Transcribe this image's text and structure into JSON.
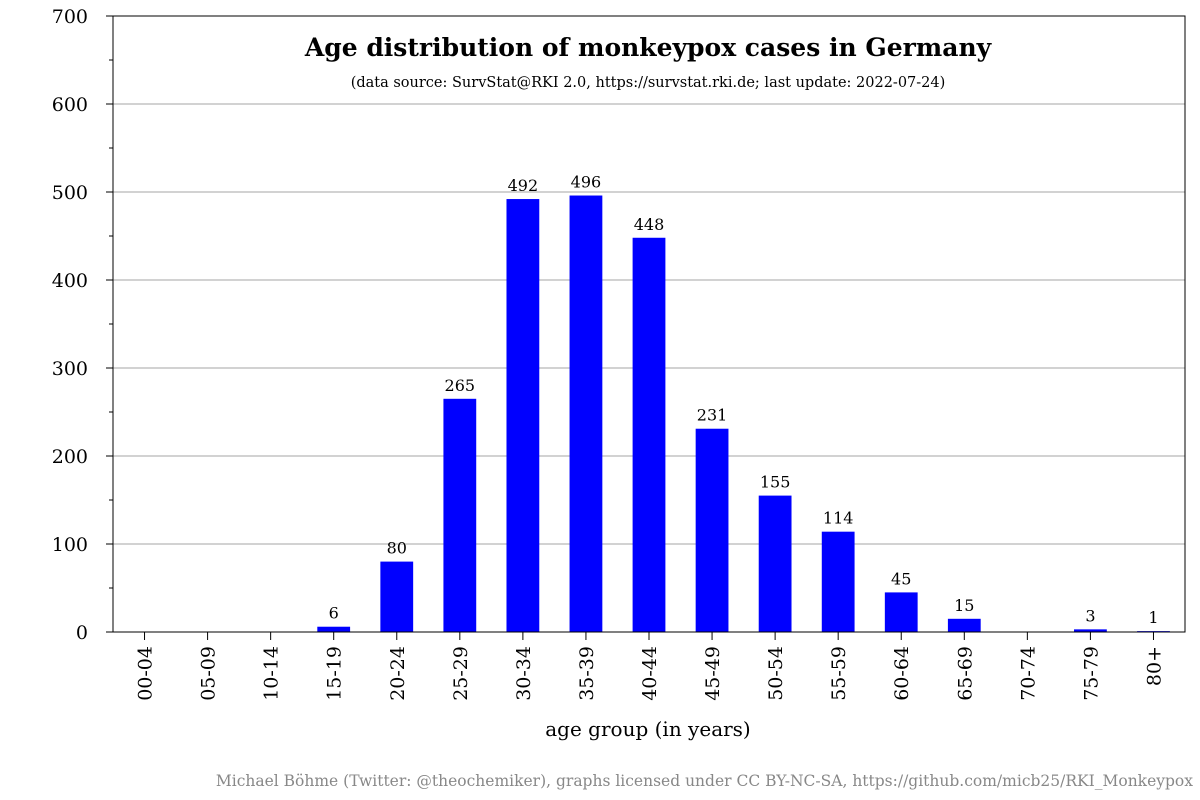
{
  "chart_data": {
    "type": "bar",
    "title": "Age distribution of monkeypox cases in Germany",
    "subtitle": "(data source: SurvStat@RKI 2.0, https://survstat.rki.de; last update: 2022-07-24)",
    "xlabel": "age group (in years)",
    "ylabel": "",
    "categories": [
      "00-04",
      "05-09",
      "10-14",
      "15-19",
      "20-24",
      "25-29",
      "30-34",
      "35-39",
      "40-44",
      "45-49",
      "50-54",
      "55-59",
      "60-64",
      "65-69",
      "70-74",
      "75-79",
      "80+"
    ],
    "values": [
      0,
      0,
      0,
      6,
      80,
      265,
      492,
      496,
      448,
      231,
      155,
      114,
      45,
      15,
      0,
      3,
      1
    ],
    "data_labels": [
      "",
      "",
      "",
      "6",
      "80",
      "265",
      "492",
      "496",
      "448",
      "231",
      "155",
      "114",
      "45",
      "15",
      "",
      "3",
      "1"
    ],
    "ylim": [
      0,
      700
    ],
    "yticks": [
      0,
      100,
      200,
      300,
      400,
      500,
      600,
      700
    ],
    "grid": true,
    "bar_color": "#0000ff",
    "grid_color": "#a6a6a6"
  },
  "footer": {
    "credit": "Michael Böhme (Twitter: @theochemiker), graphs licensed under CC BY-NC-SA, https://github.com/micb25/RKI_Monkeypox"
  }
}
